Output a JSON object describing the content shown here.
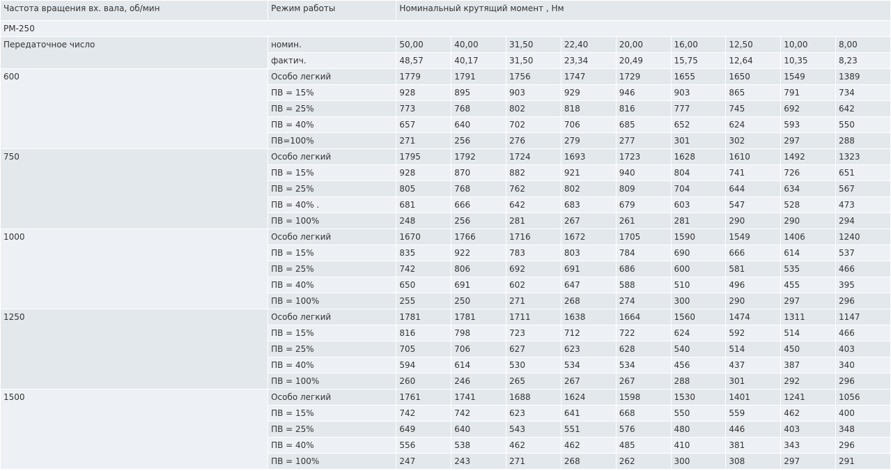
{
  "header": {
    "col0": "Частота вращения вх. вала, об/мин",
    "col1": "Режим работы",
    "col2": "Номинальный крутящий момент , Нм"
  },
  "model": "РМ-250",
  "ratio": {
    "label": "Передаточное число",
    "rows": [
      {
        "mode": "номин.",
        "values": [
          "50,00",
          "40,00",
          "31,50",
          "22,40",
          "20,00",
          "16,00",
          "12,50",
          "10,00",
          "8,00"
        ]
      },
      {
        "mode": "фактич.",
        "values": [
          "48,57",
          "40,17",
          "31,50",
          "23,34",
          "20,49",
          "15,75",
          "12,64",
          "10,35",
          "8,23"
        ]
      }
    ]
  },
  "groups": [
    {
      "speed": "600",
      "rows": [
        {
          "mode": "Особо легкий",
          "values": [
            "1779",
            "1791",
            "1756",
            "1747",
            "1729",
            "1655",
            "1650",
            "1549",
            "1389"
          ]
        },
        {
          "mode": "ПВ = 15%",
          "values": [
            "928",
            "895",
            "903",
            "929",
            "946",
            "903",
            "865",
            "791",
            "734"
          ]
        },
        {
          "mode": "ПВ = 25%",
          "values": [
            "773",
            "768",
            "802",
            "818",
            "816",
            "777",
            "745",
            "692",
            "642"
          ]
        },
        {
          "mode": "ПВ = 40%",
          "values": [
            "657",
            "640",
            "702",
            "706",
            "685",
            "652",
            "624",
            "593",
            "550"
          ]
        },
        {
          "mode": "ПВ=100%",
          "values": [
            "271",
            "256",
            "276",
            "279",
            "277",
            "301",
            "302",
            "297",
            "288"
          ]
        }
      ]
    },
    {
      "speed": "750",
      "rows": [
        {
          "mode": "Особо легкий",
          "values": [
            "1795",
            "1792",
            "1724",
            "1693",
            "1723",
            "1628",
            "1610",
            "1492",
            "1323"
          ]
        },
        {
          "mode": "ПВ = 15%",
          "values": [
            "928",
            "870",
            "882",
            "921",
            "940",
            "804",
            "741",
            "726",
            "651"
          ]
        },
        {
          "mode": "ПВ = 25%",
          "values": [
            "805",
            "768",
            "762",
            "802",
            "809",
            "704",
            "644",
            "634",
            "567"
          ]
        },
        {
          "mode": "ПВ = 40% .",
          "values": [
            "681",
            "666",
            "642",
            "683",
            "679",
            "603",
            "547",
            "528",
            "473"
          ]
        },
        {
          "mode": "ПВ = 100%",
          "values": [
            "248",
            "256",
            "281",
            "267",
            "261",
            "281",
            "290",
            "290",
            "294"
          ]
        }
      ]
    },
    {
      "speed": "1000",
      "rows": [
        {
          "mode": "Особо легкий",
          "values": [
            "1670",
            "1766",
            "1716",
            "1672",
            "1705",
            "1590",
            "1549",
            "1406",
            "1240"
          ]
        },
        {
          "mode": "ПВ = 15%",
          "values": [
            "835",
            "922",
            "783",
            "803",
            "784",
            "690",
            "666",
            "614",
            "537"
          ]
        },
        {
          "mode": "ПВ = 25%",
          "values": [
            "742",
            "806",
            "692",
            "691",
            "686",
            "600",
            "581",
            "535",
            "466"
          ]
        },
        {
          "mode": "ПВ = 40%",
          "values": [
            "650",
            "691",
            "602",
            "647",
            "588",
            "510",
            "496",
            "455",
            "395"
          ]
        },
        {
          "mode": "ПВ = 100%",
          "values": [
            "255",
            "250",
            "271",
            "268",
            "274",
            "300",
            "290",
            "297",
            "296"
          ]
        }
      ]
    },
    {
      "speed": "1250",
      "rows": [
        {
          "mode": "Особо легкий",
          "values": [
            "1781",
            "1781",
            "1711",
            "1638",
            "1664",
            "1560",
            "1474",
            "1311",
            "1147"
          ]
        },
        {
          "mode": "ПВ = 15%",
          "values": [
            "816",
            "798",
            "723",
            "712",
            "722",
            "624",
            "592",
            "514",
            "466"
          ]
        },
        {
          "mode": "ПВ = 25%",
          "values": [
            "705",
            "706",
            "627",
            "623",
            "628",
            "540",
            "514",
            "450",
            "403"
          ]
        },
        {
          "mode": "ПВ = 40%",
          "values": [
            "594",
            "614",
            "530",
            "534",
            "534",
            "456",
            "437",
            "387",
            "340"
          ]
        },
        {
          "mode": "ПВ = 100%",
          "values": [
            "260",
            "246",
            "265",
            "267",
            "267",
            "288",
            "301",
            "292",
            "296"
          ]
        }
      ]
    },
    {
      "speed": "1500",
      "rows": [
        {
          "mode": "Особо легкий",
          "values": [
            "1761",
            "1741",
            "1688",
            "1624",
            "1598",
            "1530",
            "1401",
            "1241",
            "1056"
          ]
        },
        {
          "mode": "ПВ = 15%",
          "values": [
            "742",
            "742",
            "623",
            "641",
            "668",
            "550",
            "559",
            "462",
            "400"
          ]
        },
        {
          "mode": "ПВ = 25%",
          "values": [
            "649",
            "640",
            "543",
            "551",
            "576",
            "480",
            "446",
            "403",
            "348"
          ]
        },
        {
          "mode": "ПВ = 40%",
          "values": [
            "556",
            "538",
            "462",
            "462",
            "485",
            "410",
            "381",
            "343",
            "296"
          ]
        },
        {
          "mode": "ПВ = 100%",
          "values": [
            "247",
            "243",
            "271",
            "268",
            "262",
            "300",
            "308",
            "297",
            "291"
          ]
        }
      ]
    }
  ]
}
